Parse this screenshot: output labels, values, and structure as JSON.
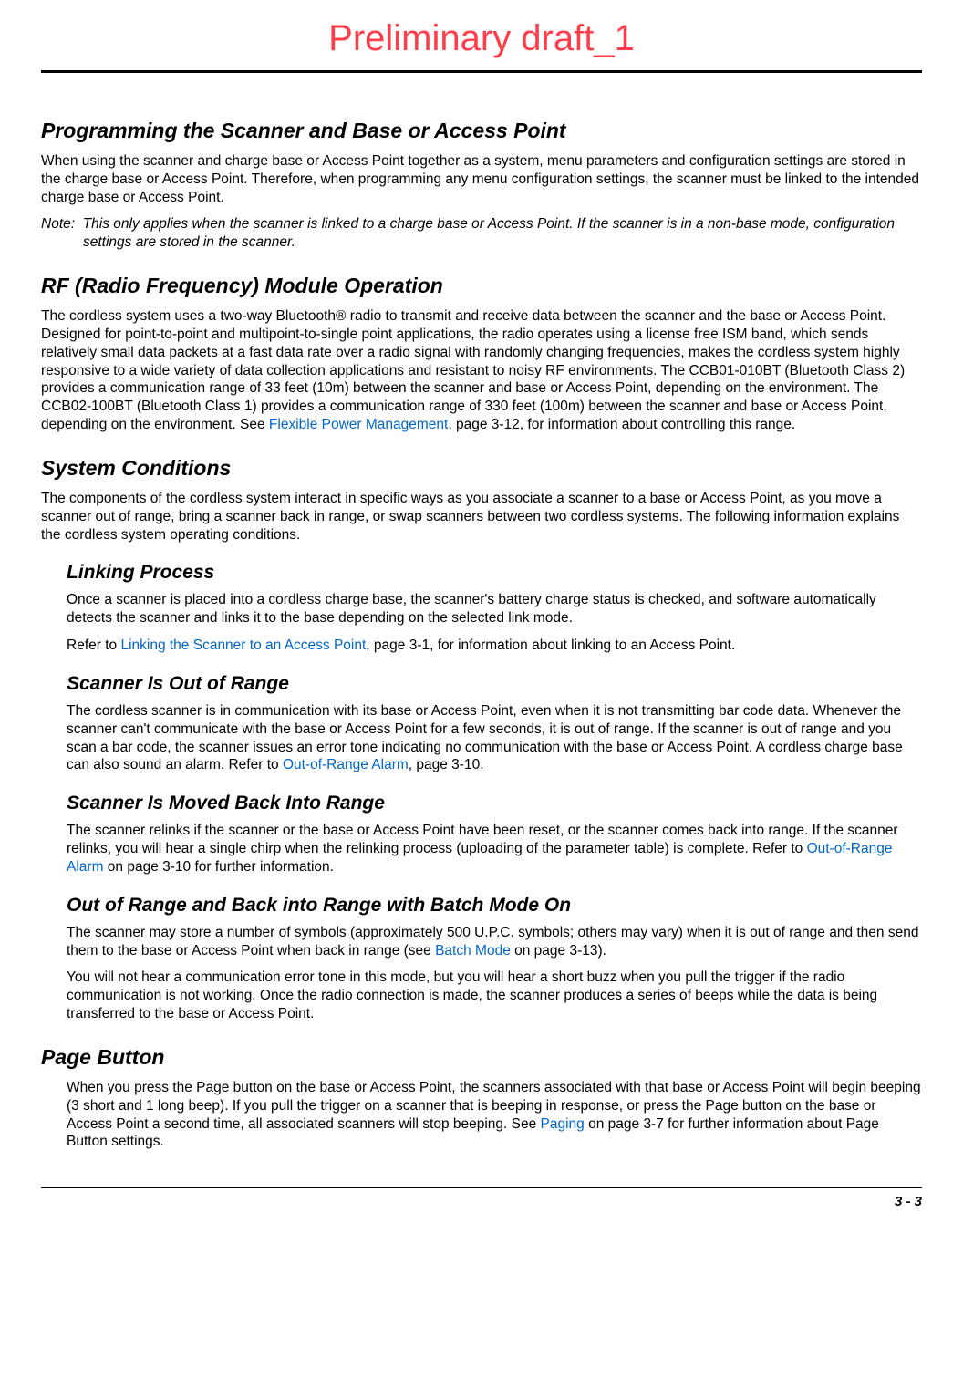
{
  "watermark": {
    "text": "Preliminary draft_1",
    "color": "#ff3d4a"
  },
  "colors": {
    "link": "#0066cc",
    "text": "#000000",
    "rule": "#000000"
  },
  "sec1": {
    "title": "Programming the Scanner and Base or Access Point",
    "p1": "When using the scanner and charge base or Access Point together as a system, menu parameters and configuration settings are stored in the charge base or Access Point.  Therefore, when programming any menu configuration settings, the scanner must be linked to the intended charge base or Access Point.",
    "note_label": "Note:",
    "note": "This only applies when the scanner is linked to a charge base or Access Point.  If the scanner is in a non-base mode, configuration settings are stored in the scanner."
  },
  "sec2": {
    "title": "RF (Radio Frequency) Module Operation",
    "p1a": "The cordless system uses a two-way Bluetooth® radio to transmit and receive data between the scanner and the base or Access Point.  Designed for point-to-point and multipoint-to-single point applications, the radio operates using a license free ISM band, which sends relatively small data packets at a fast data rate over a radio signal with randomly changing frequencies, makes the cordless system highly responsive to a wide variety of data collection applications and resistant to noisy RF environments.  The CCB01-010BT (Bluetooth Class 2) provides a communication range of 33 feet (10m) between the scanner and base or Access Point, depending on the environment.  The CCB02-100BT (Bluetooth Class 1) provides a communication range of 330 feet (100m) between the scanner and base or Access Point, depending on the environment.  See ",
    "link1": "Flexible Power Management",
    "p1b": ", page 3-12, for information about controlling this range."
  },
  "sec3": {
    "title": "System Conditions",
    "p1": "The components of the cordless system interact in specific ways as you associate a scanner to a base or Access Point, as you move a scanner out of range, bring a scanner back in range, or swap scanners between two cordless systems.  The following information explains the cordless system operating conditions.",
    "sub1": {
      "title": "Linking Process",
      "p1": "Once a scanner is placed into a cordless charge base, the scanner's battery charge status is checked, and software automatically detects the scanner and links it to the base depending on the selected link mode.",
      "p2a": "Refer to ",
      "link1": "Linking the Scanner to an Access Point",
      "p2b": ", page 3-1, for information about linking to an Access Point."
    },
    "sub2": {
      "title": "Scanner Is Out of Range",
      "p1a": "The cordless scanner is in communication with its base or Access Point, even when it is not transmitting bar code data.  Whenever the scanner can't communicate with the base or Access Point for a few seconds, it is out of range.  If the scanner is out of range and you scan a bar code, the scanner issues an error tone indicating no communication with the base or Access Point.  A cordless charge base can also sound an alarm.  Refer to ",
      "link1": "Out-of-Range Alarm",
      "p1b": ", page 3-10."
    },
    "sub3": {
      "title": "Scanner Is Moved Back Into Range",
      "p1a": "The scanner relinks if the scanner or the base or Access Point have been reset, or the scanner comes back into range.  If the scanner relinks, you will hear a single chirp when the relinking process (uploading of the parameter table) is complete.  Refer to ",
      "link1": "Out-of-Range Alarm",
      "p1b": " on page 3-10 for further information."
    },
    "sub4": {
      "title": "Out of Range and Back into Range with Batch Mode On",
      "p1a": "The scanner may store a number of symbols (approximately 500 U.P.C. symbols; others may vary) when it is out of range and then send them to the base or Access Point when back in range (see ",
      "link1": "Batch Mode",
      "p1b": " on page 3-13).",
      "p2": "You will not hear a communication error tone in this mode, but you will hear a short buzz when you pull the trigger if the radio communication is not working.  Once the radio connection is made, the scanner produces a series of beeps while the data is being transferred to the base or Access Point."
    }
  },
  "sec4": {
    "title": "Page Button",
    "p1a": "When you press the Page button on the base or Access Point, the scanners associated with that base or Access Point will begin beeping (3 short and 1 long beep).  If you pull the trigger on a scanner that is beeping in response, or press the Page button on the base or Access Point a second time, all associated scanners will stop beeping.  See ",
    "link1": "Paging",
    "p1b": " on page 3-7 for further information about Page Button settings."
  },
  "footer": {
    "page_number": "3 - 3"
  }
}
